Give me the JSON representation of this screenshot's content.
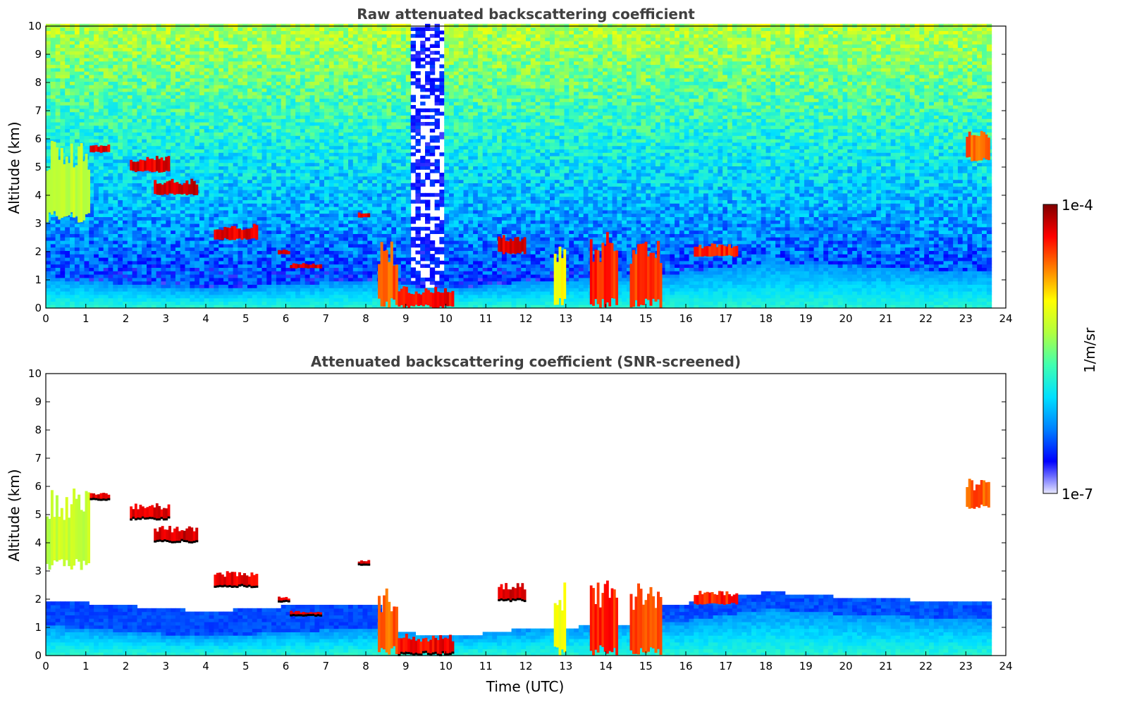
{
  "chart_data": [
    {
      "type": "heatmap",
      "title": "Raw attenuated backscattering coefficient",
      "xlabel": "",
      "ylabel": "Altitude (km)",
      "xlim": [
        0,
        24
      ],
      "ylim": [
        0,
        10
      ],
      "xticks": [
        "0",
        "1",
        "2",
        "3",
        "4",
        "5",
        "6",
        "7",
        "8",
        "9",
        "10",
        "11",
        "12",
        "13",
        "14",
        "15",
        "16",
        "17",
        "18",
        "19",
        "20",
        "21",
        "22",
        "23",
        "24"
      ],
      "yticks": [
        "0",
        "1",
        "2",
        "3",
        "4",
        "5",
        "6",
        "7",
        "8",
        "9",
        "10"
      ],
      "data_extent_x": [
        0,
        23.6
      ],
      "features": {
        "boundary_layer_top_km": [
          [
            0,
            1.0
          ],
          [
            2,
            0.8
          ],
          [
            4,
            0.6
          ],
          [
            6,
            0.8
          ],
          [
            8,
            0.9
          ],
          [
            10,
            0.6
          ],
          [
            12,
            0.9
          ],
          [
            14,
            1.0
          ],
          [
            16,
            1.2
          ],
          [
            18,
            1.6
          ],
          [
            20,
            1.4
          ],
          [
            22,
            1.3
          ],
          [
            23.6,
            1.2
          ]
        ],
        "low_noise_gap_hours": [
          9.1,
          9.9
        ],
        "clouds": [
          {
            "t0": 0.0,
            "t1": 1.1,
            "z0": 3.0,
            "z1": 6.0,
            "level": 0.62
          },
          {
            "t0": 1.1,
            "t1": 1.6,
            "z0": 5.5,
            "z1": 5.8,
            "level": 0.95
          },
          {
            "t0": 2.1,
            "t1": 3.1,
            "z0": 4.8,
            "z1": 5.4,
            "level": 0.95
          },
          {
            "t0": 2.7,
            "t1": 3.8,
            "z0": 4.0,
            "z1": 4.6,
            "level": 0.97
          },
          {
            "t0": 4.2,
            "t1": 5.3,
            "z0": 2.4,
            "z1": 3.0,
            "level": 0.95
          },
          {
            "t0": 5.8,
            "t1": 6.1,
            "z0": 1.9,
            "z1": 2.1,
            "level": 0.95
          },
          {
            "t0": 6.1,
            "t1": 6.9,
            "z0": 1.4,
            "z1": 1.6,
            "level": 0.95
          },
          {
            "t0": 7.8,
            "t1": 8.1,
            "z0": 3.2,
            "z1": 3.4,
            "level": 0.95
          },
          {
            "t0": 8.3,
            "t1": 8.8,
            "z0": 0.0,
            "z1": 2.4,
            "level": 0.85
          },
          {
            "t0": 8.8,
            "t1": 10.2,
            "z0": 0.0,
            "z1": 0.8,
            "level": 0.93
          },
          {
            "t0": 11.3,
            "t1": 12.0,
            "z0": 1.9,
            "z1": 2.6,
            "level": 0.95
          },
          {
            "t0": 12.7,
            "t1": 13.0,
            "z0": 0.0,
            "z1": 2.6,
            "level": 0.7
          },
          {
            "t0": 13.6,
            "t1": 14.3,
            "z0": 0.0,
            "z1": 2.7,
            "level": 0.9
          },
          {
            "t0": 14.6,
            "t1": 15.4,
            "z0": 0.0,
            "z1": 2.6,
            "level": 0.88
          },
          {
            "t0": 16.2,
            "t1": 17.3,
            "z0": 1.8,
            "z1": 2.3,
            "level": 0.9
          },
          {
            "t0": 23.0,
            "t1": 23.6,
            "z0": 5.2,
            "z1": 6.3,
            "level": 0.85
          }
        ]
      }
    },
    {
      "type": "heatmap",
      "title": "Attenuated backscattering coefficient (SNR-screened)",
      "xlabel": "Time (UTC)",
      "ylabel": "Altitude (km)",
      "xlim": [
        0,
        24
      ],
      "ylim": [
        0,
        10
      ],
      "xticks": [
        "0",
        "1",
        "2",
        "3",
        "4",
        "5",
        "6",
        "7",
        "8",
        "9",
        "10",
        "11",
        "12",
        "13",
        "14",
        "15",
        "16",
        "17",
        "18",
        "19",
        "20",
        "21",
        "22",
        "23",
        "24"
      ],
      "yticks": [
        "0",
        "1",
        "2",
        "3",
        "4",
        "5",
        "6",
        "7",
        "8",
        "9",
        "10"
      ],
      "data_extent_x": [
        0,
        23.6
      ]
    }
  ],
  "colorbar": {
    "label": "1/m/sr",
    "max_label": "1e-4",
    "min_label": "1e-7",
    "colormap": "jet",
    "colors": [
      "#e8e8ff",
      "#0000ff",
      "#0080ff",
      "#00e0ff",
      "#40ffb0",
      "#b0ff40",
      "#ffff00",
      "#ff8000",
      "#ff0000",
      "#800000"
    ]
  }
}
